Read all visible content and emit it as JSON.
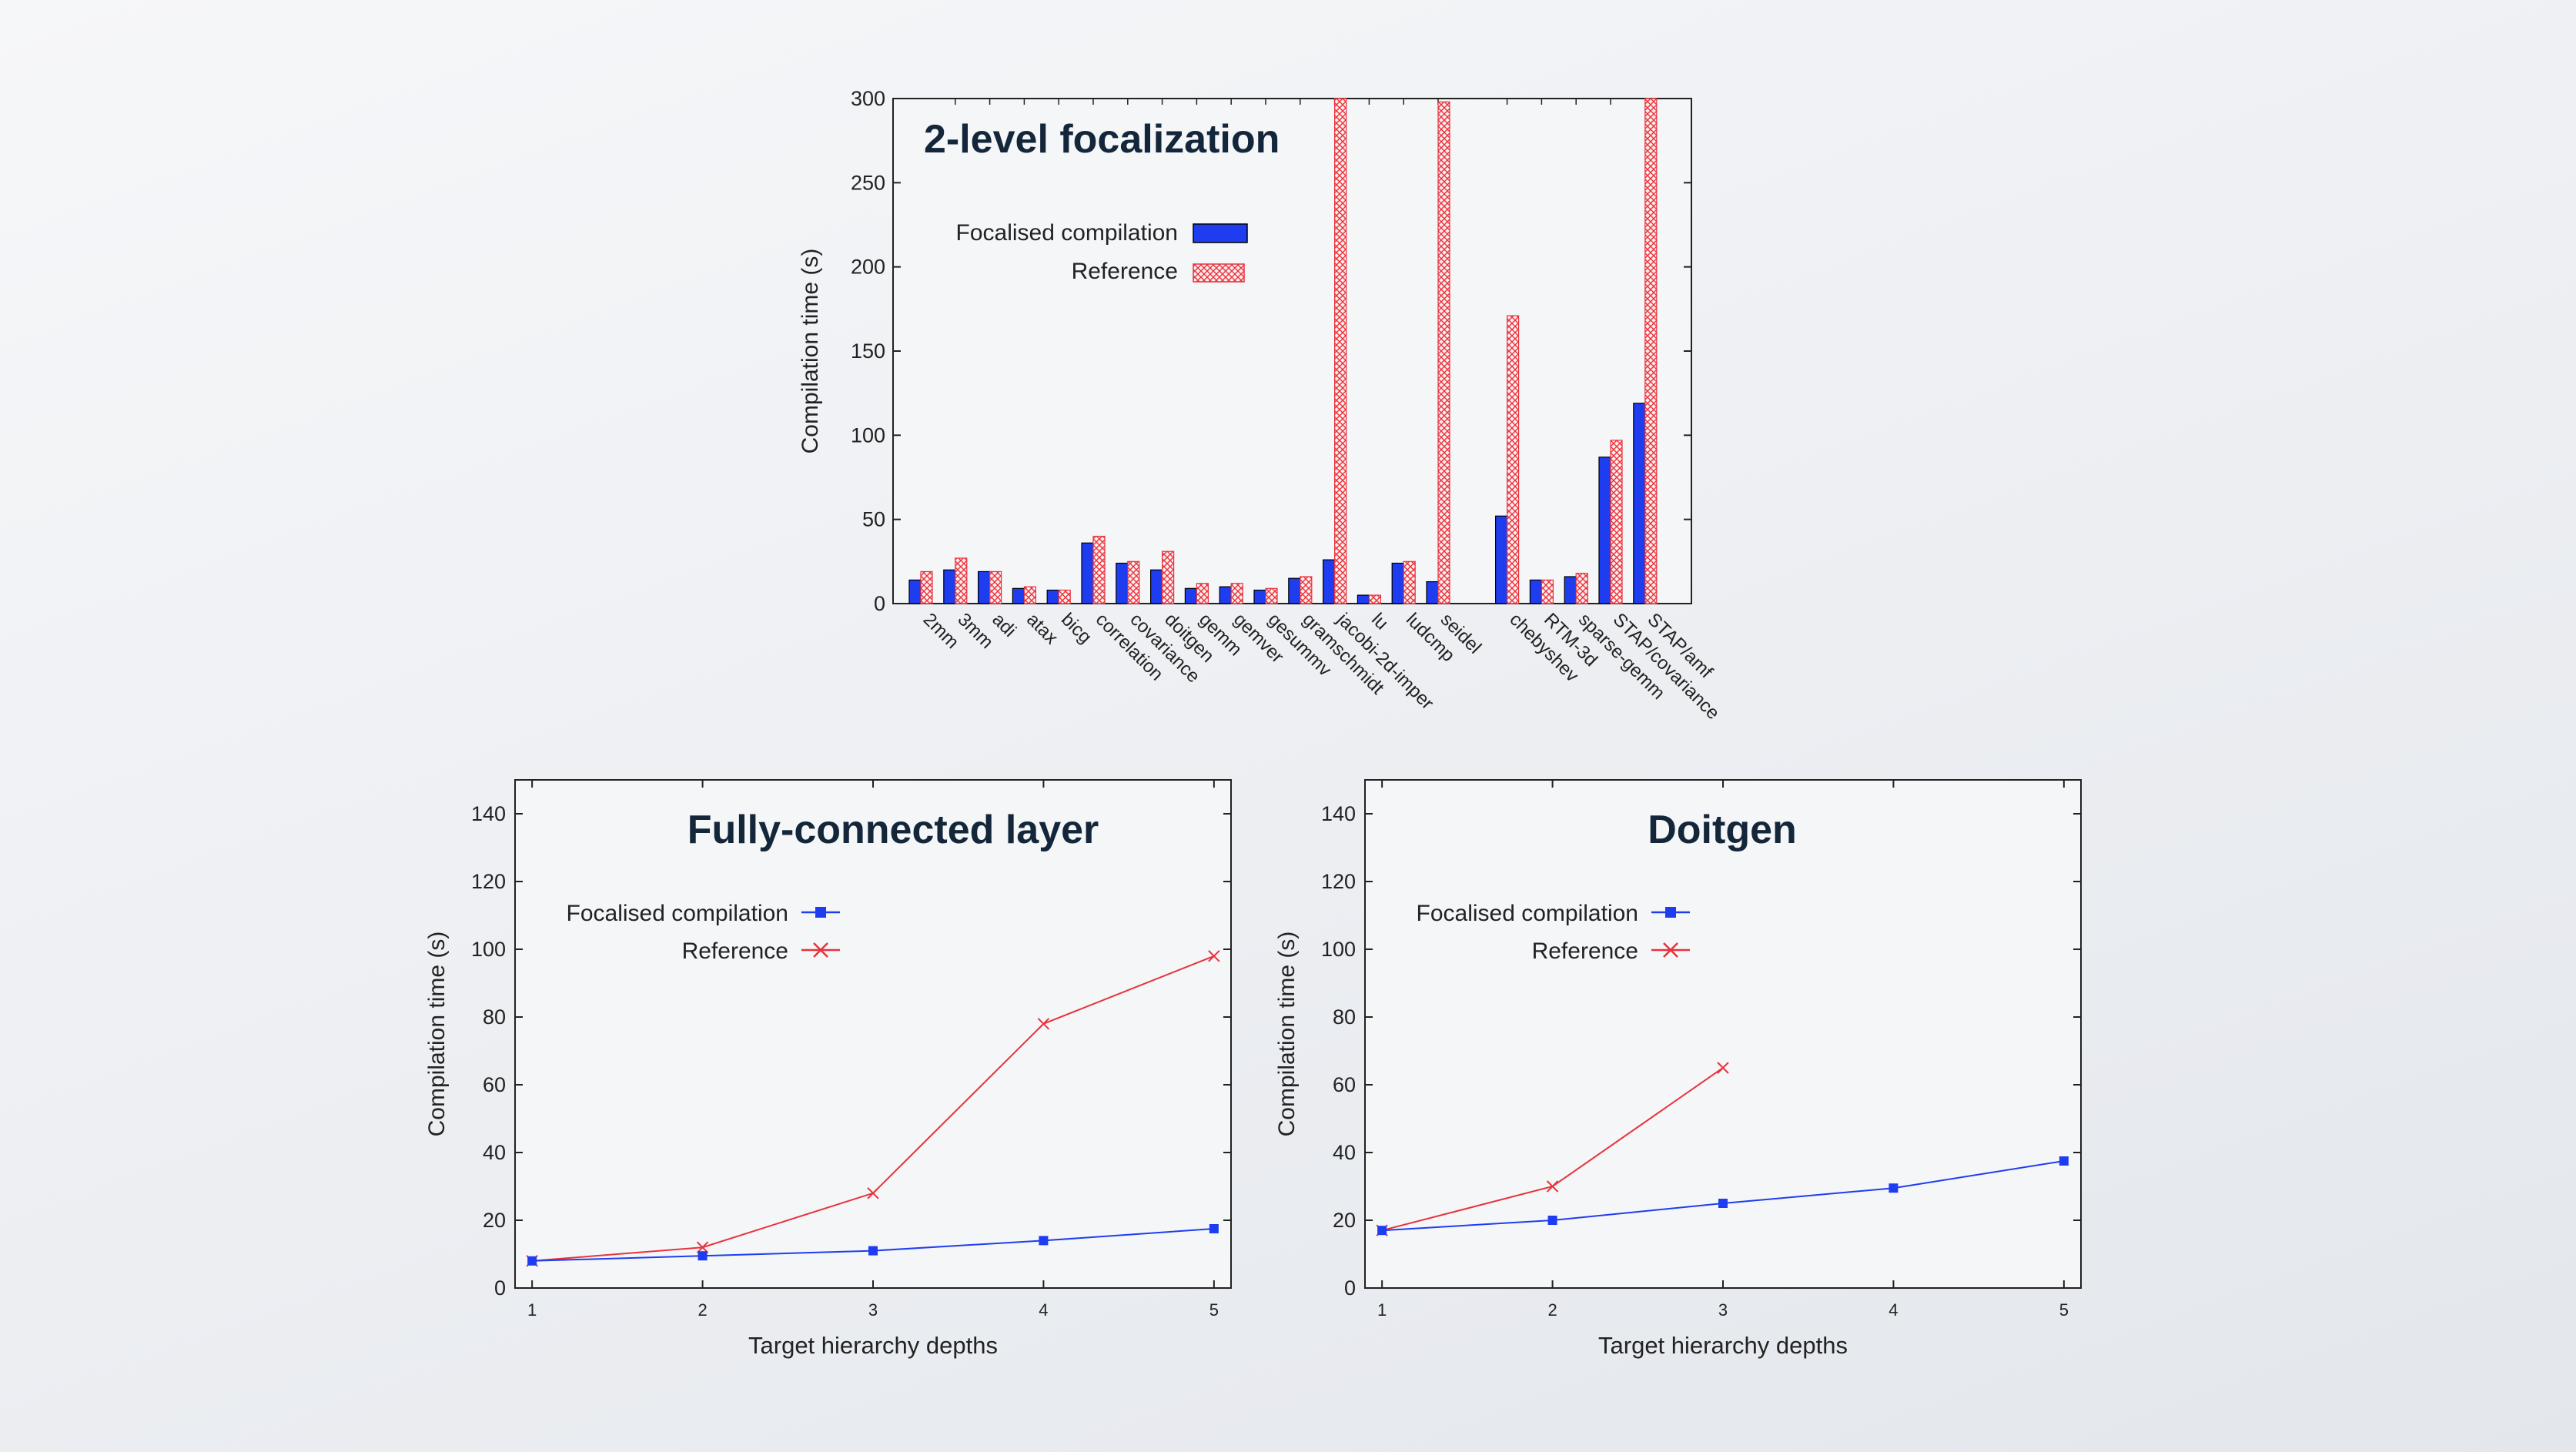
{
  "colors": {
    "focalised": "#1f3df0",
    "reference": "#e8323c",
    "plot_bg": "#f4f6f8",
    "title": "#14263a",
    "axis": "#222222"
  },
  "chart_data": [
    {
      "type": "bar",
      "title": "2-level focalization",
      "xlabel": "",
      "ylabel": "Compilation time (s)",
      "ylim": [
        0,
        300
      ],
      "yticks": [
        0,
        50,
        100,
        150,
        200,
        250,
        300
      ],
      "legend": "top-left",
      "categories": [
        "2mm",
        "3mm",
        "adi",
        "atax",
        "bicg",
        "correlation",
        "covariance",
        "doitgen",
        "gemm",
        "gemver",
        "gesummv",
        "gramschmidt",
        "jacobi-2d-imper",
        "lu",
        "ludcmp",
        "seidel",
        "",
        "chebyshev",
        "RTM-3d",
        "sparse-gemm",
        "STAP/covariance",
        "STAP/amf"
      ],
      "series": [
        {
          "name": "Focalised compilation",
          "values": [
            14,
            20,
            19,
            9,
            8,
            36,
            24,
            20,
            9,
            10,
            8,
            15,
            26,
            5,
            24,
            13,
            null,
            52,
            14,
            16,
            87,
            119
          ]
        },
        {
          "name": "Reference",
          "values": [
            19,
            27,
            19,
            10,
            8,
            40,
            25,
            31,
            12,
            12,
            9,
            16,
            300,
            5,
            25,
            298,
            null,
            171,
            14,
            18,
            97,
            300
          ]
        }
      ]
    },
    {
      "type": "line",
      "title": "Fully-connected layer",
      "xlabel": "Target hierarchy depths",
      "ylabel": "Compilation time (s)",
      "xlim": [
        0.9,
        5.1
      ],
      "ylim": [
        0,
        150
      ],
      "xticks": [
        1,
        2,
        3,
        4,
        5
      ],
      "yticks": [
        0,
        20,
        40,
        60,
        80,
        100,
        120,
        140
      ],
      "legend": "top-left",
      "series": [
        {
          "name": "Focalised compilation",
          "x": [
            1,
            2,
            3,
            4,
            5
          ],
          "y": [
            8,
            9.5,
            11,
            14,
            17.5
          ]
        },
        {
          "name": "Reference",
          "x": [
            1,
            2,
            3,
            4,
            5
          ],
          "y": [
            8,
            12,
            28,
            78,
            98
          ]
        }
      ]
    },
    {
      "type": "line",
      "title": "Doitgen",
      "xlabel": "Target hierarchy depths",
      "ylabel": "Compilation time (s)",
      "xlim": [
        0.9,
        5.1
      ],
      "ylim": [
        0,
        150
      ],
      "xticks": [
        1,
        2,
        3,
        4,
        5
      ],
      "yticks": [
        0,
        20,
        40,
        60,
        80,
        100,
        120,
        140
      ],
      "legend": "top-left",
      "series": [
        {
          "name": "Focalised compilation",
          "x": [
            1,
            2,
            3,
            4,
            5
          ],
          "y": [
            17,
            20,
            25,
            29.5,
            37.5
          ]
        },
        {
          "name": "Reference",
          "x": [
            1,
            2,
            3
          ],
          "y": [
            17,
            30,
            65
          ]
        }
      ]
    }
  ]
}
